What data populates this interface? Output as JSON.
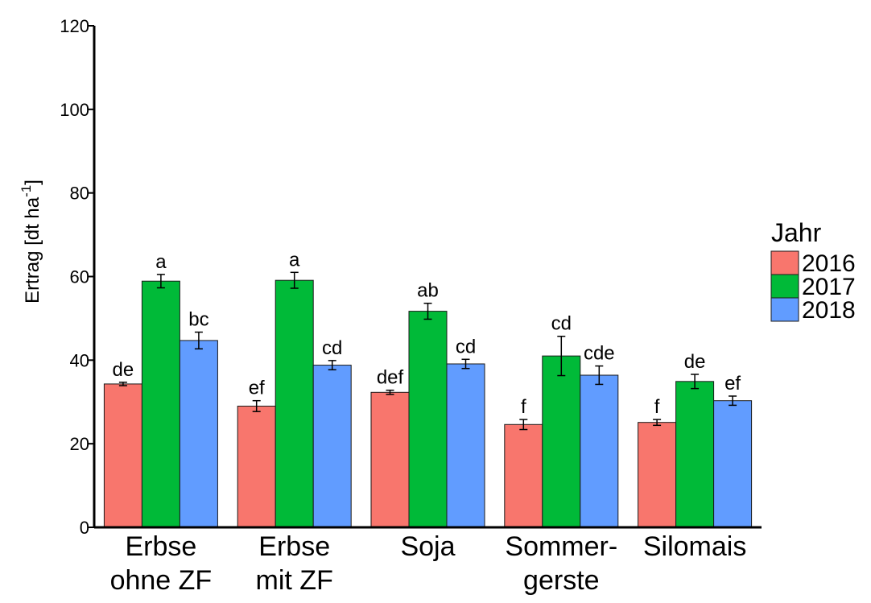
{
  "chart_data": {
    "type": "bar",
    "ylabel": "Ertrag [dt ha",
    "ylabel_sup": "-1",
    "ylabel_end": "]",
    "ylim": [
      0,
      120
    ],
    "yticks": [
      "0",
      "20",
      "40",
      "60",
      "80",
      "100",
      "120"
    ],
    "categories": [
      [
        "Erbse",
        "ohne ZF"
      ],
      [
        "Erbse",
        "mit ZF"
      ],
      [
        "Soja",
        ""
      ],
      [
        "Sommer-",
        "gerste"
      ],
      [
        "Silomais",
        ""
      ]
    ],
    "legend_title": "Jahr",
    "legend_position": "right",
    "grid": false,
    "series": [
      {
        "name": "2016",
        "color": "#F8766D",
        "values": [
          34.3,
          29.0,
          32.3,
          24.6,
          25.1
        ],
        "errors": [
          0.4,
          1.3,
          0.5,
          1.2,
          0.7
        ],
        "letters": [
          "de",
          "ef",
          "def",
          "f",
          "f"
        ]
      },
      {
        "name": "2017",
        "color": "#00BA38",
        "values": [
          58.9,
          59.1,
          51.7,
          41.0,
          34.9
        ],
        "errors": [
          1.6,
          1.9,
          1.9,
          4.7,
          1.7
        ],
        "letters": [
          "a",
          "a",
          "ab",
          "cd",
          "de"
        ]
      },
      {
        "name": "2018",
        "color": "#619CFF",
        "values": [
          44.7,
          38.8,
          39.1,
          36.4,
          30.3
        ],
        "errors": [
          2.0,
          1.1,
          1.1,
          2.2,
          1.1
        ],
        "letters": [
          "bc",
          "cd",
          "cd",
          "cde",
          "ef"
        ]
      }
    ]
  }
}
